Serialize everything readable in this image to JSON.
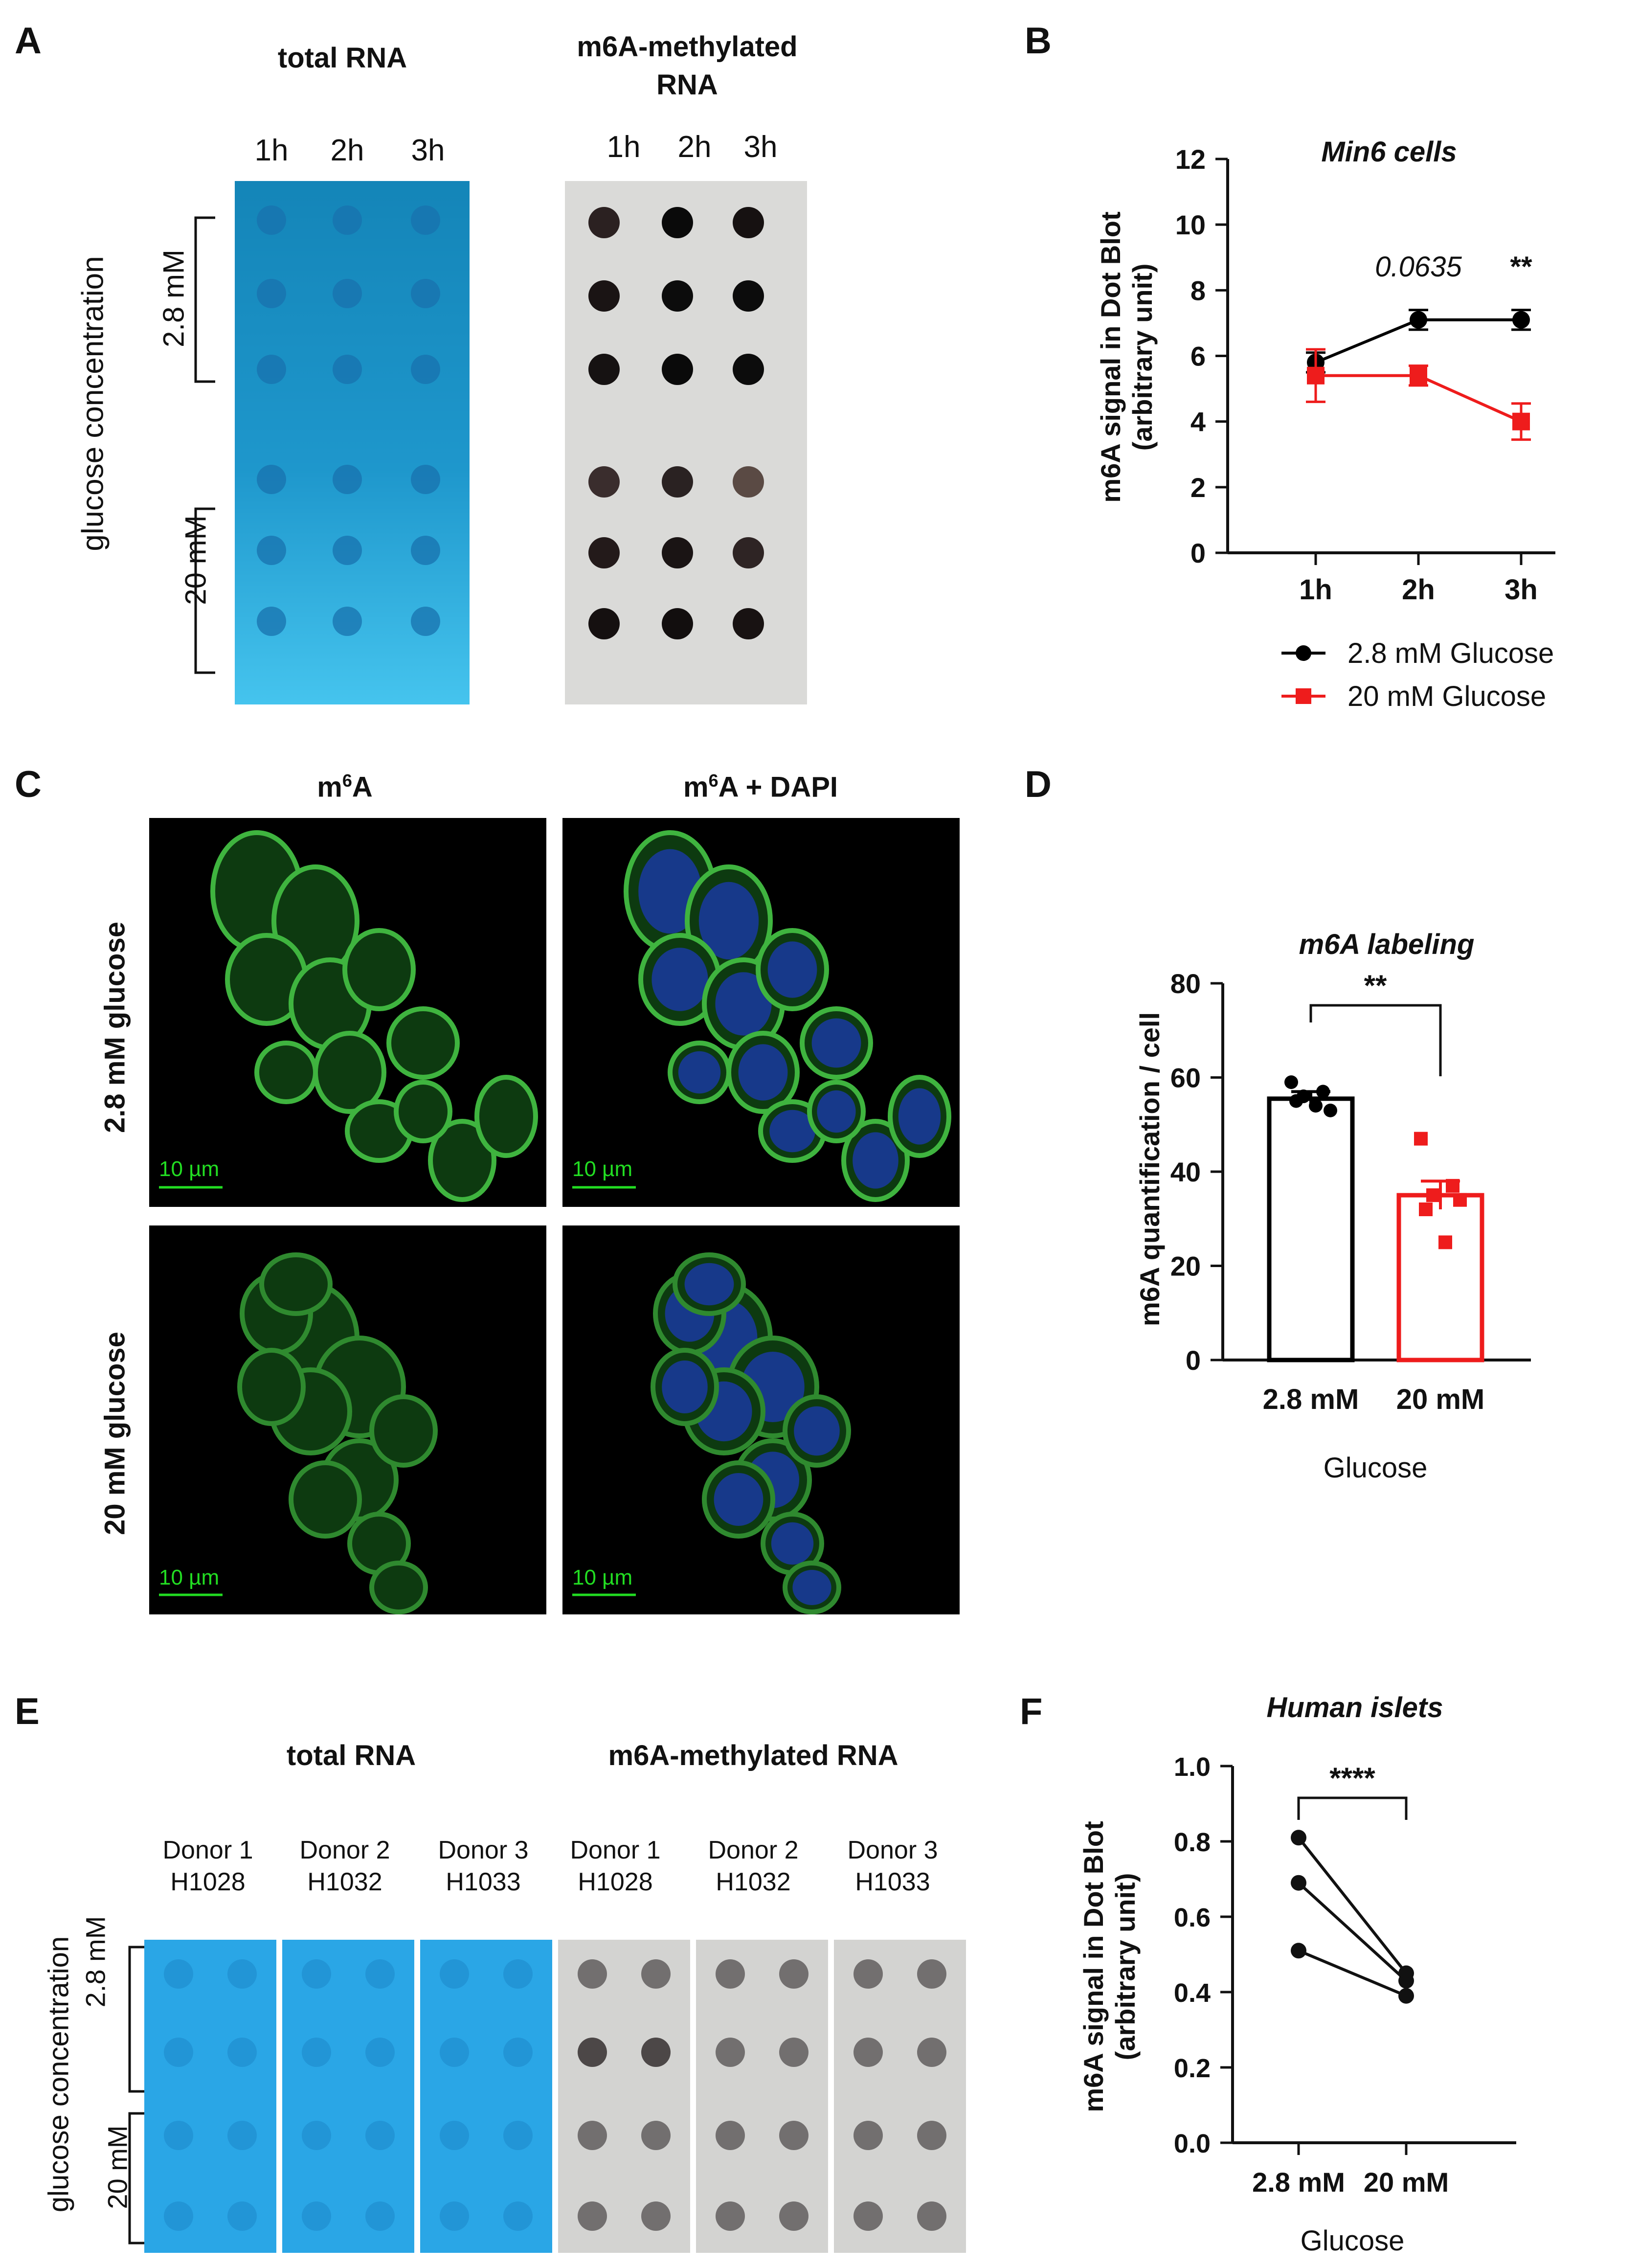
{
  "panels": {
    "a": "A",
    "b": "B",
    "c": "C",
    "d": "D",
    "e": "E",
    "f": "F"
  },
  "panel_a": {
    "header_total": "total RNA",
    "header_m6a_line1": "m6A-methylated",
    "header_m6a_line2": "RNA",
    "time_labels": [
      "1h",
      "2h",
      "3h"
    ],
    "ylabel": "glucose concentration",
    "group_low": "2.8 mM",
    "group_high": "20 mM",
    "colors": {
      "blot_blue": "#1a8fc4",
      "blot_gray": "#d8d8d8"
    }
  },
  "panel_c": {
    "col1_pre": "m",
    "col1_sup": "6",
    "col1_post": "A",
    "col2_pre": "m",
    "col2_sup": "6",
    "col2_post": "A + DAPI",
    "row1": "2.8 mM glucose",
    "row2": "20 mM glucose",
    "scale": "10 µm"
  },
  "panel_e": {
    "header_total": "total RNA",
    "header_m6a": "m6A-methylated RNA",
    "donors": [
      {
        "line1": "Donor 1",
        "line2": "H1028"
      },
      {
        "line1": "Donor 2",
        "line2": "H1032"
      },
      {
        "line1": "Donor 3",
        "line2": "H1033"
      },
      {
        "line1": "Donor 1",
        "line2": "H1028"
      },
      {
        "line1": "Donor 2",
        "line2": "H1032"
      },
      {
        "line1": "Donor 3",
        "line2": "H1033"
      }
    ],
    "ylabel": "glucose concentration",
    "group_low": "2.8 mM",
    "group_high": "20 mM"
  },
  "chart_data": [
    {
      "id": "B",
      "type": "line",
      "title": "Min6 cells",
      "ylabel_line1": "m6A signal in Dot Blot",
      "ylabel_line2": "(arbitrary unit)",
      "categories": [
        "1h",
        "2h",
        "3h"
      ],
      "ylim": [
        0,
        12
      ],
      "yticks": [
        0,
        2,
        4,
        6,
        8,
        10,
        12
      ],
      "series": [
        {
          "name": "2.8 mM Glucose",
          "color": "#000000",
          "marker": "circle",
          "values": [
            5.8,
            7.1,
            7.1
          ],
          "errors": [
            0.3,
            0.3,
            0.3
          ]
        },
        {
          "name": "20 mM Glucose",
          "color": "#ee1c1c",
          "marker": "square",
          "values": [
            5.4,
            5.4,
            4.0
          ],
          "errors": [
            0.8,
            0.3,
            0.55
          ]
        }
      ],
      "annotations": [
        {
          "category": "2h",
          "text": "0.0635"
        },
        {
          "category": "3h",
          "text": "**"
        }
      ],
      "legend": "bottom"
    },
    {
      "id": "D",
      "type": "bar",
      "title": "m6A labeling",
      "ylabel": "m6A quantification / cell",
      "xlabel": "Glucose",
      "categories": [
        "2.8 mM",
        "20 mM"
      ],
      "values": [
        55.5,
        35
      ],
      "errors": [
        1.5,
        3
      ],
      "colors": [
        "#000000",
        "#ee1c1c"
      ],
      "points": [
        [
          59,
          57,
          56,
          53,
          55,
          54
        ],
        [
          47,
          37,
          35,
          34,
          32,
          25
        ]
      ],
      "ylim": [
        0,
        80
      ],
      "yticks": [
        0,
        20,
        40,
        60,
        80
      ],
      "significance": "**"
    },
    {
      "id": "F",
      "type": "scatter",
      "title": "Human islets",
      "ylabel_line1": "m6A signal in Dot Blot",
      "ylabel_line2": "(arbitrary unit)",
      "xlabel": "Glucose",
      "categories": [
        "2.8 mM",
        "20 mM"
      ],
      "pairs": [
        [
          0.81,
          0.45
        ],
        [
          0.69,
          0.43
        ],
        [
          0.51,
          0.39
        ]
      ],
      "ylim": [
        0,
        1.0
      ],
      "yticks": [
        "0.0",
        "0.2",
        "0.4",
        "0.6",
        "0.8",
        "1.0"
      ],
      "significance": "****"
    }
  ]
}
